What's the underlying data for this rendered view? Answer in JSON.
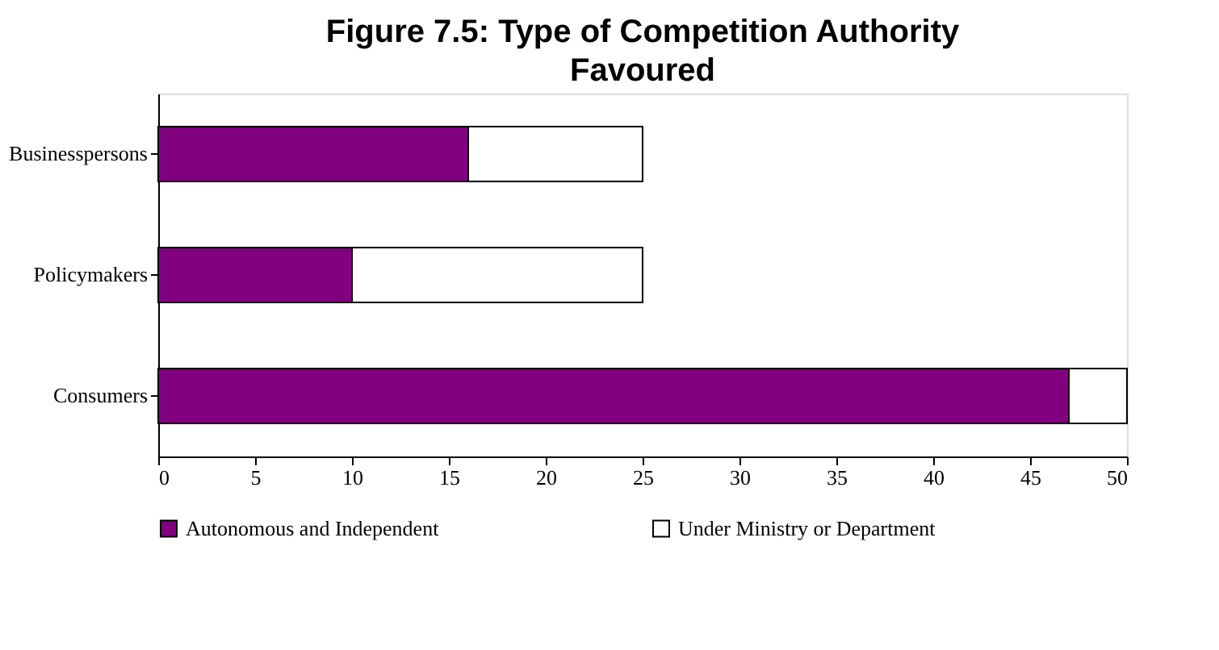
{
  "chart_data": {
    "type": "bar",
    "orientation": "horizontal",
    "stacked": true,
    "title": "Figure 7.5: Type of Competition Authority Favoured",
    "categories": [
      "Businesspersons",
      "Policymakers",
      "Consumers"
    ],
    "series": [
      {
        "name": "Autonomous and Independent",
        "color": "#800080",
        "values": [
          16,
          10,
          47
        ]
      },
      {
        "name": "Under Ministry or Department",
        "color": "#ffffff",
        "values": [
          9,
          15,
          3
        ]
      }
    ],
    "xlim": [
      0,
      50
    ],
    "xticks": [
      0,
      5,
      10,
      15,
      20,
      25,
      30,
      35,
      40,
      45,
      50
    ],
    "grid": false,
    "legend": "bottom"
  }
}
